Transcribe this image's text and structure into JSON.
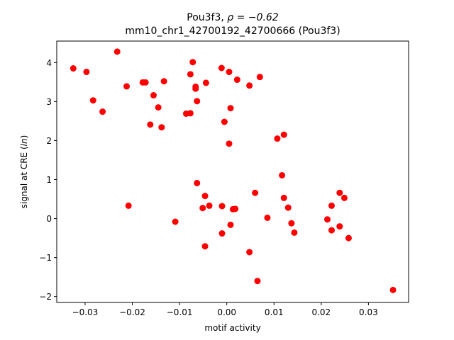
{
  "chart_data": {
    "type": "scatter",
    "title_prefix": "Pou3f3, ",
    "title_rho": "ρ = −0.62",
    "subtitle": "mm10_chr1_42700192_42700666 (Pou3f3)",
    "xlabel": "motif activity",
    "ylabel_prefix": "signal at CRE (",
    "ylabel_italic": "ln",
    "ylabel_suffix": ")",
    "xlim": [
      -0.036,
      0.0385
    ],
    "ylim": [
      -2.15,
      4.55
    ],
    "xticks": [
      -0.03,
      -0.02,
      -0.01,
      0.0,
      0.01,
      0.02,
      0.03
    ],
    "xtick_labels": [
      "−0.03",
      "−0.02",
      "−0.01",
      "0.00",
      "0.01",
      "0.02",
      "0.03"
    ],
    "yticks": [
      -2,
      -1,
      0,
      1,
      2,
      3,
      4
    ],
    "ytick_labels": [
      "−2",
      "−1",
      "0",
      "1",
      "2",
      "3",
      "4"
    ],
    "grid": false,
    "marker_color": "#ff0000",
    "points": [
      {
        "x": -0.0325,
        "y": 3.85
      },
      {
        "x": -0.0297,
        "y": 3.76
      },
      {
        "x": -0.0283,
        "y": 3.03
      },
      {
        "x": -0.0263,
        "y": 2.74
      },
      {
        "x": -0.0232,
        "y": 4.28
      },
      {
        "x": -0.0212,
        "y": 3.39
      },
      {
        "x": -0.0208,
        "y": 0.33
      },
      {
        "x": -0.0178,
        "y": 3.49
      },
      {
        "x": -0.0172,
        "y": 3.49
      },
      {
        "x": -0.0162,
        "y": 2.41
      },
      {
        "x": -0.0155,
        "y": 3.16
      },
      {
        "x": -0.0145,
        "y": 2.85
      },
      {
        "x": -0.0138,
        "y": 2.34
      },
      {
        "x": -0.0133,
        "y": 3.52
      },
      {
        "x": -0.0109,
        "y": -0.08
      },
      {
        "x": -0.0086,
        "y": 2.69
      },
      {
        "x": -0.0077,
        "y": 3.7
      },
      {
        "x": -0.0077,
        "y": 2.7
      },
      {
        "x": -0.0072,
        "y": 4.01
      },
      {
        "x": -0.0066,
        "y": 3.38
      },
      {
        "x": -0.0066,
        "y": 3.33
      },
      {
        "x": -0.0063,
        "y": 3.01
      },
      {
        "x": -0.0063,
        "y": 0.91
      },
      {
        "x": -0.0051,
        "y": 0.27
      },
      {
        "x": -0.0044,
        "y": 3.48
      },
      {
        "x": -0.0046,
        "y": 0.58
      },
      {
        "x": -0.0046,
        "y": -0.71
      },
      {
        "x": -0.0037,
        "y": 0.33
      },
      {
        "x": -0.0011,
        "y": 3.86
      },
      {
        "x": -0.001,
        "y": 0.32
      },
      {
        "x": -0.001,
        "y": -0.38
      },
      {
        "x": -0.0005,
        "y": 2.48
      },
      {
        "x": 0.0005,
        "y": 3.76
      },
      {
        "x": 0.0005,
        "y": 1.92
      },
      {
        "x": 0.0008,
        "y": 2.83
      },
      {
        "x": 0.0008,
        "y": -0.16
      },
      {
        "x": 0.0013,
        "y": 0.24
      },
      {
        "x": 0.0018,
        "y": 0.25
      },
      {
        "x": 0.0022,
        "y": 3.56
      },
      {
        "x": 0.0048,
        "y": 3.41
      },
      {
        "x": 0.0048,
        "y": -0.86
      },
      {
        "x": 0.006,
        "y": 0.66
      },
      {
        "x": 0.0065,
        "y": -1.6
      },
      {
        "x": 0.007,
        "y": 3.63
      },
      {
        "x": 0.0086,
        "y": 0.02
      },
      {
        "x": 0.0107,
        "y": 2.05
      },
      {
        "x": 0.0117,
        "y": 1.11
      },
      {
        "x": 0.0121,
        "y": 2.15
      },
      {
        "x": 0.0121,
        "y": 0.53
      },
      {
        "x": 0.013,
        "y": 0.28
      },
      {
        "x": 0.0137,
        "y": -0.12
      },
      {
        "x": 0.0143,
        "y": -0.36
      },
      {
        "x": 0.0213,
        "y": -0.02
      },
      {
        "x": 0.0222,
        "y": 0.33
      },
      {
        "x": 0.0222,
        "y": -0.3
      },
      {
        "x": 0.0239,
        "y": 0.66
      },
      {
        "x": 0.0239,
        "y": -0.2
      },
      {
        "x": 0.0249,
        "y": 0.53
      },
      {
        "x": 0.0258,
        "y": -0.5
      },
      {
        "x": 0.0352,
        "y": -1.83
      }
    ]
  }
}
